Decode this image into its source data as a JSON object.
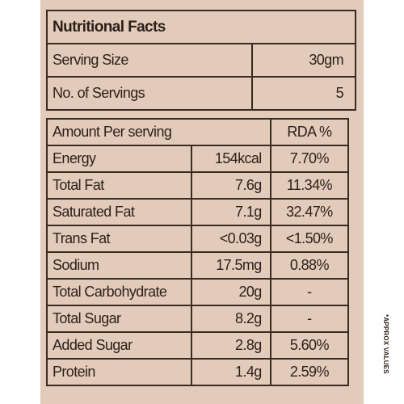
{
  "header": {
    "title": "Nutritional Facts"
  },
  "serving": {
    "size_label": "Serving Size",
    "size_value": "30gm",
    "count_label": "No. of Servings",
    "count_value": "5"
  },
  "nutrients": {
    "header_label": "Amount Per serving",
    "header_rda": "RDA %",
    "rows": [
      {
        "name": "Energy",
        "value": "154kcal",
        "rda": "7.70%"
      },
      {
        "name": "Total Fat",
        "value": "7.6g",
        "rda": "11.34%"
      },
      {
        "name": "Saturated Fat",
        "value": "7.1g",
        "rda": "32.47%"
      },
      {
        "name": "Trans Fat",
        "value": "<0.03g",
        "rda": "<1.50%"
      },
      {
        "name": "Sodium",
        "value": "17.5mg",
        "rda": "0.88%"
      },
      {
        "name": "Total Carbohydrate",
        "value": "20g",
        "rda": "-"
      },
      {
        "name": "Total Sugar",
        "value": "8.2g",
        "rda": "-"
      },
      {
        "name": "Added Sugar",
        "value": "2.8g",
        "rda": "5.60%"
      },
      {
        "name": "Protein",
        "value": "1.4g",
        "rda": "2.59%"
      }
    ]
  },
  "note": "*APPROX VALUES"
}
